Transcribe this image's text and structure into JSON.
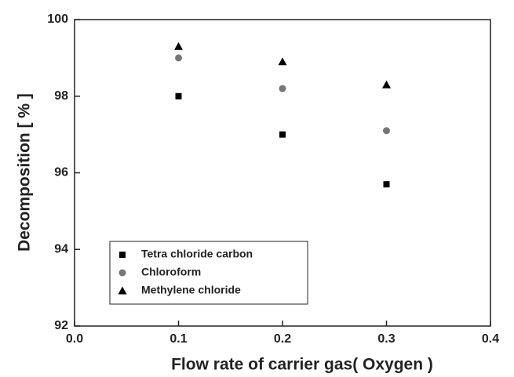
{
  "chart_data": {
    "type": "scatter",
    "x_label": "Flow rate of carrier gas( Oxygen )",
    "y_label": "Decomposition [ % ]",
    "series": [
      {
        "name": "Tetra chloride carbon",
        "color": "#000000",
        "marker": "square",
        "x": [
          0.1,
          0.2,
          0.3
        ],
        "values": [
          98.0,
          97.0,
          95.7
        ]
      },
      {
        "name": "Chloroform",
        "color": "#777777",
        "marker": "circle",
        "x": [
          0.1,
          0.2,
          0.3
        ],
        "values": [
          99.0,
          98.2,
          97.1
        ]
      },
      {
        "name": "Methylene chloride",
        "color": "#000000",
        "marker": "triangle",
        "x": [
          0.1,
          0.2,
          0.3
        ],
        "values": [
          99.3,
          98.9,
          98.3
        ]
      }
    ],
    "xlim": [
      0,
      0.4
    ],
    "xticks": [
      {
        "value": 0,
        "label": "0.0"
      },
      0.1,
      0.2,
      0.3,
      0.4
    ],
    "ylim": [
      92,
      100
    ],
    "yticks": [
      92,
      94,
      96,
      98,
      100
    ],
    "grid": false,
    "legend": "lower left"
  }
}
